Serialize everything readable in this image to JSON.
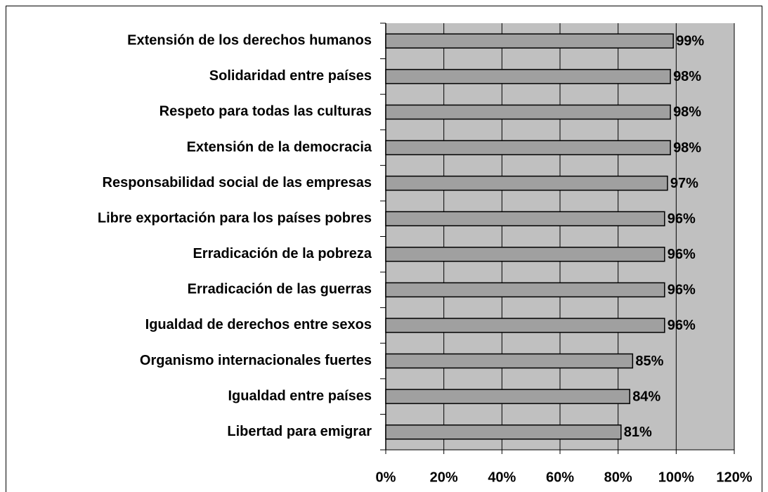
{
  "chart_data": {
    "type": "hbar",
    "categories": [
      "Extensión de los derechos humanos",
      "Solidaridad entre países",
      "Respeto para todas las culturas",
      "Extensión de la democracia",
      "Responsabilidad social de las empresas",
      "Libre exportación para los países pobres",
      "Erradicación de la pobreza",
      "Erradicación de las guerras",
      "Igualdad de derechos entre sexos",
      "Organismo internacionales fuertes",
      "Igualdad entre países",
      "Libertad para emigrar"
    ],
    "values": [
      99,
      98,
      98,
      98,
      97,
      96,
      96,
      96,
      96,
      85,
      84,
      81
    ],
    "value_labels": [
      "99%",
      "98%",
      "98%",
      "98%",
      "97%",
      "96%",
      "96%",
      "96%",
      "96%",
      "85%",
      "84%",
      "81%"
    ],
    "color": "#a0a0a0",
    "xlim": [
      0,
      120
    ],
    "xticks": [
      {
        "value": 0,
        "label": "0%"
      },
      {
        "value": 20,
        "label": "20%"
      },
      {
        "value": 40,
        "label": "40%"
      },
      {
        "value": 60,
        "label": "60%"
      },
      {
        "value": 80,
        "label": "80%"
      },
      {
        "value": 100,
        "label": "100%"
      },
      {
        "value": 120,
        "label": "120%"
      }
    ],
    "grid": true
  }
}
